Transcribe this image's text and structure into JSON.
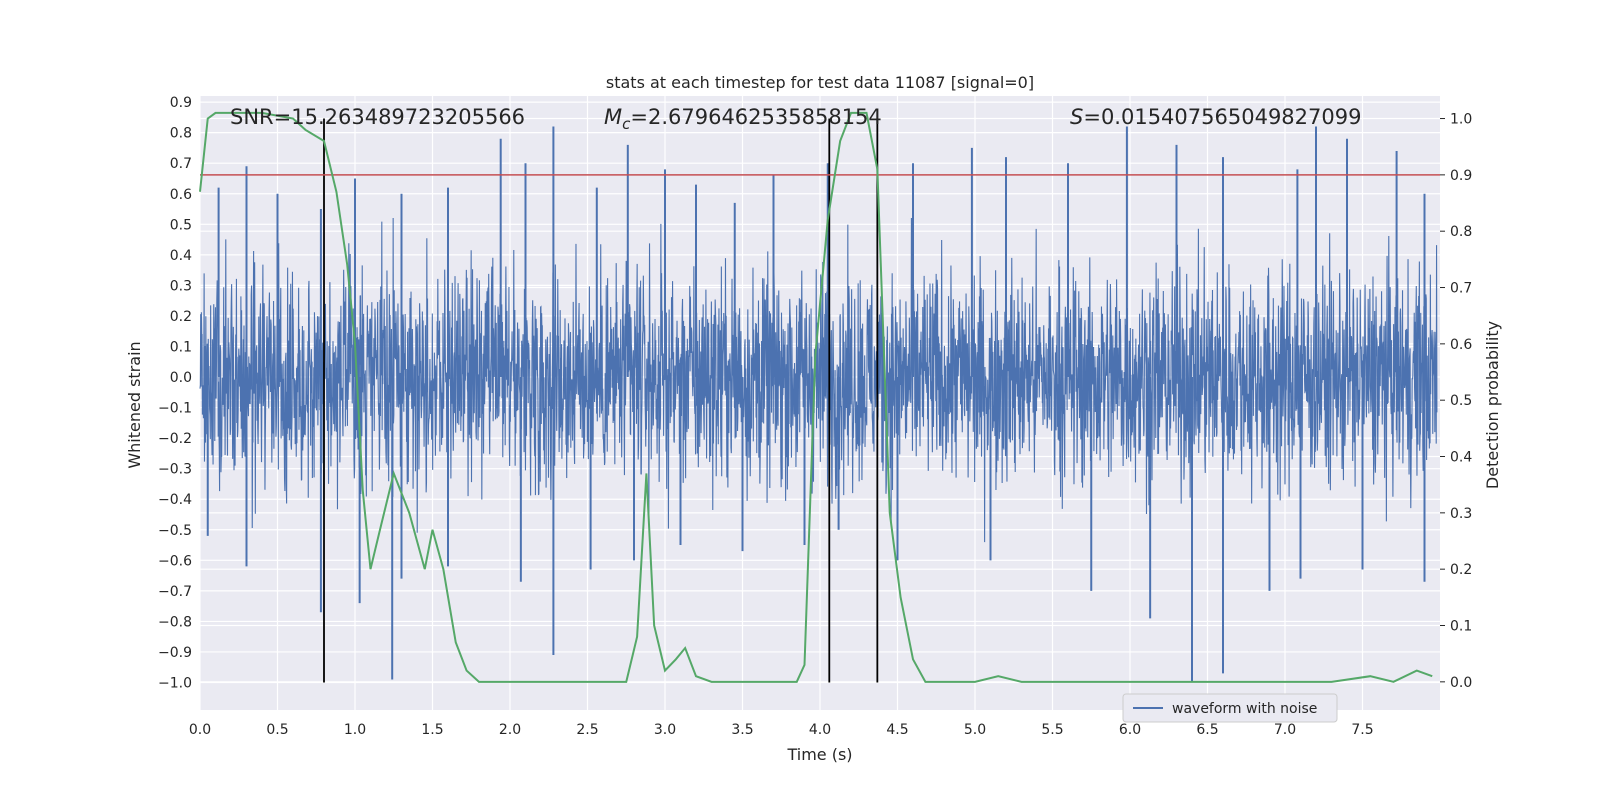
{
  "chart_data": {
    "type": "line",
    "title": "stats at each timestep for test data 11087 [signal=0]",
    "xlabel": "Time (s)",
    "ylabel": "Whitened strain",
    "y2label": "Detection probability",
    "xlim": [
      0.0,
      8.0
    ],
    "ylim": [
      -1.09,
      0.92
    ],
    "y2lim": [
      -0.05,
      1.04
    ],
    "xticks": [
      "0.0",
      "0.5",
      "1.0",
      "1.5",
      "2.0",
      "2.5",
      "3.0",
      "3.5",
      "4.0",
      "4.5",
      "5.0",
      "5.5",
      "6.0",
      "6.5",
      "7.0",
      "7.5"
    ],
    "yticks": [
      "0.9",
      "0.8",
      "0.7",
      "0.6",
      "0.5",
      "0.4",
      "0.3",
      "0.2",
      "0.1",
      "0.0",
      "−0.1",
      "−0.2",
      "−0.3",
      "−0.4",
      "−0.5",
      "−0.6",
      "−0.7",
      "−0.8",
      "−0.9",
      "−1.0"
    ],
    "y2ticks": [
      "0.0",
      "0.1",
      "0.2",
      "0.3",
      "0.4",
      "0.5",
      "0.6",
      "0.7",
      "0.8",
      "0.9",
      "1.0"
    ],
    "grid": true,
    "legend_position": "bottom-right",
    "annotations": {
      "snr": "SNR=15.263489723205566",
      "mc_symbol": "M",
      "mc_sub": "c",
      "mc_value": "=2.6796462535858154",
      "s_symbol": "S",
      "s_value": "=0.015407565049827099"
    },
    "threshold": 0.9,
    "vertical_lines": [
      0.8,
      4.06,
      4.37
    ],
    "series": [
      {
        "name": "waveform with noise",
        "axis": "left",
        "color": "#4c72b0",
        "envelope_note": "dense noise, core band ~±0.3, extremes shown as peaks",
        "peaks_up": [
          [
            0.12,
            0.62
          ],
          [
            0.3,
            0.69
          ],
          [
            0.5,
            0.6
          ],
          [
            0.78,
            0.55
          ],
          [
            1.0,
            0.65
          ],
          [
            1.3,
            0.6
          ],
          [
            1.6,
            0.62
          ],
          [
            1.94,
            0.78
          ],
          [
            2.1,
            0.7
          ],
          [
            2.28,
            0.82
          ],
          [
            2.56,
            0.62
          ],
          [
            2.76,
            0.76
          ],
          [
            3.0,
            0.68
          ],
          [
            3.2,
            0.63
          ],
          [
            3.45,
            0.57
          ],
          [
            3.7,
            0.66
          ],
          [
            4.05,
            0.7
          ],
          [
            4.6,
            0.7
          ],
          [
            4.98,
            0.75
          ],
          [
            5.2,
            0.72
          ],
          [
            5.6,
            0.7
          ],
          [
            5.98,
            0.82
          ],
          [
            6.3,
            0.76
          ],
          [
            6.6,
            0.72
          ],
          [
            7.08,
            0.68
          ],
          [
            7.2,
            0.82
          ],
          [
            7.4,
            0.78
          ],
          [
            7.72,
            0.74
          ],
          [
            7.9,
            0.6
          ]
        ],
        "peaks_down": [
          [
            0.05,
            -0.52
          ],
          [
            0.3,
            -0.62
          ],
          [
            0.78,
            -0.77
          ],
          [
            1.03,
            -0.74
          ],
          [
            1.24,
            -0.99
          ],
          [
            1.3,
            -0.66
          ],
          [
            1.6,
            -0.62
          ],
          [
            2.07,
            -0.67
          ],
          [
            2.28,
            -0.91
          ],
          [
            2.52,
            -0.63
          ],
          [
            2.8,
            -0.6
          ],
          [
            3.1,
            -0.55
          ],
          [
            3.5,
            -0.57
          ],
          [
            3.9,
            -0.55
          ],
          [
            4.12,
            -0.5
          ],
          [
            4.5,
            -0.6
          ],
          [
            5.1,
            -0.6
          ],
          [
            5.75,
            -0.7
          ],
          [
            6.13,
            -0.79
          ],
          [
            6.4,
            -1.0
          ],
          [
            6.6,
            -0.97
          ],
          [
            6.9,
            -0.7
          ],
          [
            7.1,
            -0.66
          ],
          [
            7.5,
            -0.63
          ],
          [
            7.9,
            -0.67
          ]
        ]
      },
      {
        "name": "",
        "axis": "right",
        "color": "#55a868",
        "x": [
          0.0,
          0.05,
          0.1,
          0.2,
          0.4,
          0.6,
          0.68,
          0.8,
          0.88,
          0.95,
          1.0,
          1.05,
          1.1,
          1.17,
          1.25,
          1.35,
          1.45,
          1.5,
          1.57,
          1.65,
          1.72,
          1.8,
          2.0,
          2.3,
          2.6,
          2.75,
          2.82,
          2.88,
          2.93,
          3.0,
          3.07,
          3.13,
          3.2,
          3.3,
          3.5,
          3.7,
          3.85,
          3.9,
          3.97,
          4.05,
          4.13,
          4.2,
          4.3,
          4.37,
          4.45,
          4.52,
          4.6,
          4.68,
          4.8,
          5.0,
          5.15,
          5.3,
          5.5,
          5.8,
          6.2,
          6.6,
          7.0,
          7.3,
          7.55,
          7.7,
          7.85,
          7.95
        ],
        "y": [
          0.87,
          1.0,
          1.01,
          1.01,
          1.01,
          1.0,
          0.98,
          0.96,
          0.87,
          0.74,
          0.6,
          0.34,
          0.2,
          0.28,
          0.37,
          0.3,
          0.2,
          0.27,
          0.2,
          0.07,
          0.02,
          0.0,
          0.0,
          0.0,
          0.0,
          0.0,
          0.08,
          0.37,
          0.1,
          0.02,
          0.04,
          0.06,
          0.01,
          0.0,
          0.0,
          0.0,
          0.0,
          0.03,
          0.58,
          0.82,
          0.96,
          1.01,
          1.01,
          0.91,
          0.3,
          0.15,
          0.04,
          0.0,
          0.0,
          0.0,
          0.01,
          0.0,
          0.0,
          0.0,
          0.0,
          0.0,
          0.0,
          0.0,
          0.01,
          0.0,
          0.02,
          0.01
        ]
      },
      {
        "name": "",
        "axis": "right",
        "color": "#c44e52",
        "kind": "threshold"
      }
    ]
  }
}
